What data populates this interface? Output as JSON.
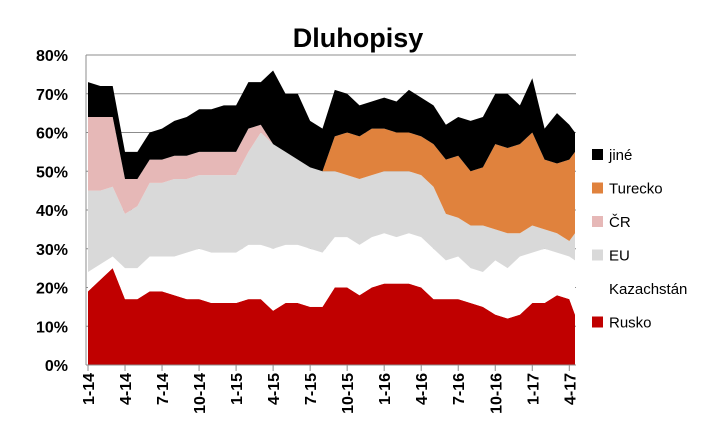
{
  "chart_data": {
    "type": "area",
    "title": "Dluhopisy",
    "xlabel": "",
    "ylabel": "",
    "ylim": [
      0,
      80
    ],
    "y_unit": "%",
    "y_ticks": [
      "0%",
      "10%",
      "20%",
      "30%",
      "40%",
      "50%",
      "60%",
      "70%",
      "80%"
    ],
    "grid": true,
    "legend_position": "right",
    "stacking": "stacked",
    "x": [
      "2014-01",
      "2014-02",
      "2014-03",
      "2014-04",
      "2014-05",
      "2014-06",
      "2014-07",
      "2014-08",
      "2014-09",
      "2014-10",
      "2014-11",
      "2014-12",
      "2015-01",
      "2015-02",
      "2015-03",
      "2015-04",
      "2015-05",
      "2015-06",
      "2015-07",
      "2015-08",
      "2015-09",
      "2015-10",
      "2015-11",
      "2015-12",
      "2016-01",
      "2016-02",
      "2016-03",
      "2016-04",
      "2016-05",
      "2016-06",
      "2016-07",
      "2016-08",
      "2016-09",
      "2016-10",
      "2016-11",
      "2016-12",
      "2017-01",
      "2017-02",
      "2017-03",
      "2017-04",
      "2017-05"
    ],
    "x_tick_labels": [
      "1-14",
      "4-14",
      "7-14",
      "10-14",
      "1-15",
      "4-15",
      "7-15",
      "10-15",
      "1-16",
      "4-16",
      "7-16",
      "10-16",
      "1-17",
      "4-17"
    ],
    "series": [
      {
        "name": "Rusko",
        "color": "#C00000",
        "values": [
          19,
          22,
          25,
          17,
          17,
          19,
          19,
          18,
          17,
          17,
          16,
          16,
          16,
          17,
          17,
          14,
          16,
          16,
          15,
          15,
          20,
          20,
          18,
          20,
          21,
          21,
          21,
          20,
          17,
          17,
          17,
          16,
          15,
          13,
          12,
          13,
          16,
          16,
          18,
          17,
          13
        ]
      },
      {
        "name": "Kazachstán",
        "color": "#FFFFFF",
        "values": [
          5,
          4,
          3,
          8,
          8,
          9,
          9,
          10,
          12,
          13,
          13,
          13,
          13,
          14,
          14,
          16,
          15,
          15,
          15,
          14,
          13,
          13,
          13,
          13,
          13,
          12,
          13,
          13,
          13,
          10,
          11,
          9,
          9,
          14,
          13,
          15,
          13,
          14,
          11,
          11,
          14
        ]
      },
      {
        "name": "EU",
        "color": "#D9D9D9",
        "values": [
          21,
          19,
          18,
          14,
          16,
          19,
          19,
          20,
          19,
          19,
          20,
          20,
          20,
          24,
          29,
          27,
          24,
          22,
          21,
          21,
          17,
          16,
          17,
          16,
          16,
          17,
          16,
          16,
          16,
          12,
          10,
          11,
          12,
          8,
          9,
          6,
          7,
          5,
          5,
          4,
          7
        ]
      },
      {
        "name": "ČR",
        "color": "#E6B8B7",
        "values": [
          19,
          19,
          18,
          9,
          7,
          6,
          6,
          6,
          6,
          6,
          6,
          6,
          6,
          6,
          2,
          0,
          0,
          0,
          0,
          0,
          0,
          0,
          0,
          0,
          0,
          0,
          0,
          0,
          0,
          0,
          0,
          0,
          0,
          0,
          0,
          0,
          0,
          0,
          0,
          0,
          0
        ]
      },
      {
        "name": "Turecko",
        "color": "#E0823D",
        "values": [
          0,
          0,
          0,
          0,
          0,
          0,
          0,
          0,
          0,
          0,
          0,
          0,
          0,
          0,
          0,
          0,
          0,
          0,
          0,
          0,
          9,
          11,
          11,
          12,
          11,
          10,
          10,
          10,
          11,
          14,
          16,
          14,
          15,
          22,
          22,
          23,
          24,
          18,
          18,
          21,
          21
        ]
      },
      {
        "name": "jiné",
        "color": "#000000",
        "values": [
          9,
          8,
          8,
          7,
          7,
          7,
          8,
          9,
          10,
          11,
          11,
          12,
          12,
          12,
          11,
          19,
          15,
          17,
          12,
          11,
          12,
          10,
          8,
          7,
          8,
          8,
          11,
          10,
          10,
          9,
          10,
          13,
          13,
          13,
          14,
          10,
          14,
          8,
          13,
          9,
          5
        ]
      }
    ],
    "legend_order": [
      "jiné",
      "Turecko",
      "ČR",
      "EU",
      "Kazachstán",
      "Rusko"
    ]
  }
}
